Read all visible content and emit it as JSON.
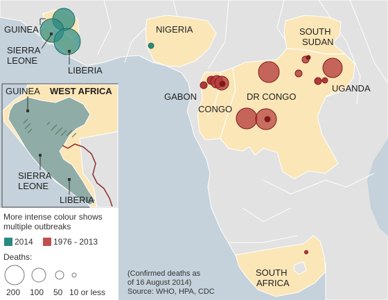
{
  "labels": {
    "guinea": "GUINEA",
    "sierra_leone": [
      "SIERRA",
      "LEONE"
    ],
    "liberia": "LIBERIA",
    "nigeria": "NIGERIA",
    "south_sudan": [
      "SOUTH",
      "SUDAN"
    ],
    "uganda": "UGANDA",
    "gabon": "GABON",
    "congo": "CONGO",
    "dr_congo": "DR CONGO",
    "south_africa": [
      "SOUTH",
      "AFRICA"
    ]
  },
  "inset": {
    "title": "WEST AFRICA",
    "guinea": "GUINEA",
    "sierra_leone": [
      "SIERRA",
      "LEONE"
    ],
    "liberia": "LIBERIA"
  },
  "legend": {
    "note": [
      "More intense colour shows",
      "multiple outbreaks"
    ],
    "series": [
      {
        "label": "2014",
        "color": "#2a8a82"
      },
      {
        "label": "1976 - 2013",
        "color": "#c0504d"
      }
    ],
    "deaths_title": "Deaths:",
    "sizes": [
      "200",
      "100",
      "50",
      "10 or less"
    ]
  },
  "source": [
    "(Confirmed deaths as",
    "of 16 August 2014)",
    "Source: WHO, HPA, CDC"
  ],
  "colors": {
    "sea": "#c5d2db",
    "land": "#e0e0e0",
    "affected_land": "#fbe6b8",
    "outbreak_2014": "#2a8a82",
    "outbreak_historic": "#b33a3a"
  }
}
